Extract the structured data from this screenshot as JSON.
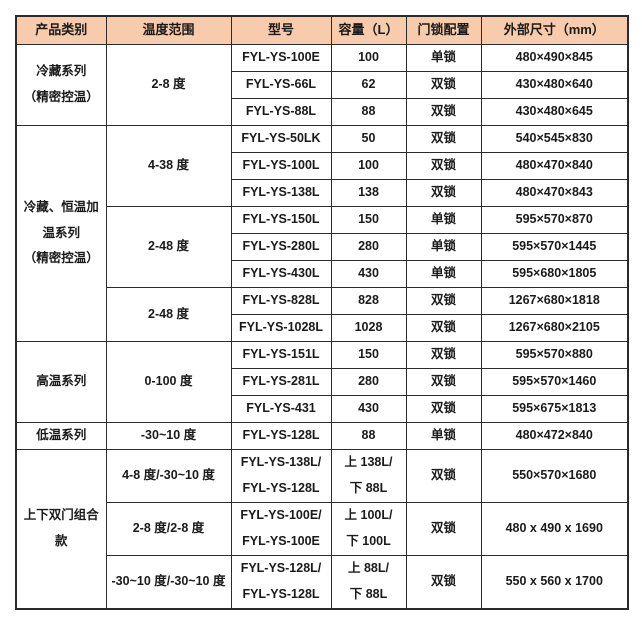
{
  "colors": {
    "header_bg": "#F8CBAD",
    "border": "#2B2B2B",
    "text": "#1A1A1A"
  },
  "columns": {
    "category": "产品类别",
    "temp_range": "温度范围",
    "model": "型号",
    "capacity": "容量（L）",
    "lock": "门锁配置",
    "dimensions": "外部尺寸（mm）"
  },
  "categories": {
    "refrigerated": "冷藏系列\n（精密控温）",
    "refrigerated_heating": "冷藏、恒温加\n温系列\n（精密控温）",
    "high_temp": "高温系列",
    "low_temp": "低温系列",
    "dual_door": "上下双门组合\n款"
  },
  "temps": {
    "t1": "2-8 度",
    "t2": "4-38 度",
    "t3": "2-48 度",
    "t4": "2-48 度",
    "t5": "0-100 度",
    "t6": "-30~10 度",
    "t7": "4-8 度/-30~10 度",
    "t8": "2-8 度/2-8 度",
    "t9": "-30~10 度/-30~10 度"
  },
  "rows": [
    {
      "model": "FYL-YS-100E",
      "capacity": "100",
      "lock": "单锁",
      "size": "480×490×845"
    },
    {
      "model": "FYL-YS-66L",
      "capacity": "62",
      "lock": "双锁",
      "size": "430×480×640"
    },
    {
      "model": "FYL-YS-88L",
      "capacity": "88",
      "lock": "双锁",
      "size": "430×480×645"
    },
    {
      "model": "FYL-YS-50LK",
      "capacity": "50",
      "lock": "双锁",
      "size": "540×545×830"
    },
    {
      "model": "FYL-YS-100L",
      "capacity": "100",
      "lock": "双锁",
      "size": "480×470×840"
    },
    {
      "model": "FYL-YS-138L",
      "capacity": "138",
      "lock": "双锁",
      "size": "480×470×843"
    },
    {
      "model": "FYL-YS-150L",
      "capacity": "150",
      "lock": "单锁",
      "size": "595×570×870"
    },
    {
      "model": "FYL-YS-280L",
      "capacity": "280",
      "lock": "单锁",
      "size": "595×570×1445"
    },
    {
      "model": "FYL-YS-430L",
      "capacity": "430",
      "lock": "单锁",
      "size": "595×680×1805"
    },
    {
      "model": "FYL-YS-828L",
      "capacity": "828",
      "lock": "双锁",
      "size": "1267×680×1818"
    },
    {
      "model": "FYL-YS-1028L",
      "capacity": "1028",
      "lock": "双锁",
      "size": "1267×680×2105"
    },
    {
      "model": "FYL-YS-151L",
      "capacity": "150",
      "lock": "双锁",
      "size": "595×570×880"
    },
    {
      "model": "FYL-YS-281L",
      "capacity": "280",
      "lock": "双锁",
      "size": "595×570×1460"
    },
    {
      "model": "FYL-YS-431",
      "capacity": "430",
      "lock": "双锁",
      "size": "595×675×1813"
    },
    {
      "model": "FYL-YS-128L",
      "capacity": "88",
      "lock": "单锁",
      "size": "480×472×840"
    },
    {
      "model": "FYL-YS-138L/\nFYL-YS-128L",
      "capacity": "上 138L/\n下 88L",
      "lock": "双锁",
      "size": "550×570×1680"
    },
    {
      "model": "FYL-YS-100E/\nFYL-YS-100E",
      "capacity": "上 100L/\n下 100L",
      "lock": "双锁",
      "size": "480 x 490 x 1690"
    },
    {
      "model": "FYL-YS-128L/\nFYL-YS-128L",
      "capacity": "上 88L/\n下 88L",
      "lock": "双锁",
      "size": "550 x 560 x 1700"
    }
  ]
}
